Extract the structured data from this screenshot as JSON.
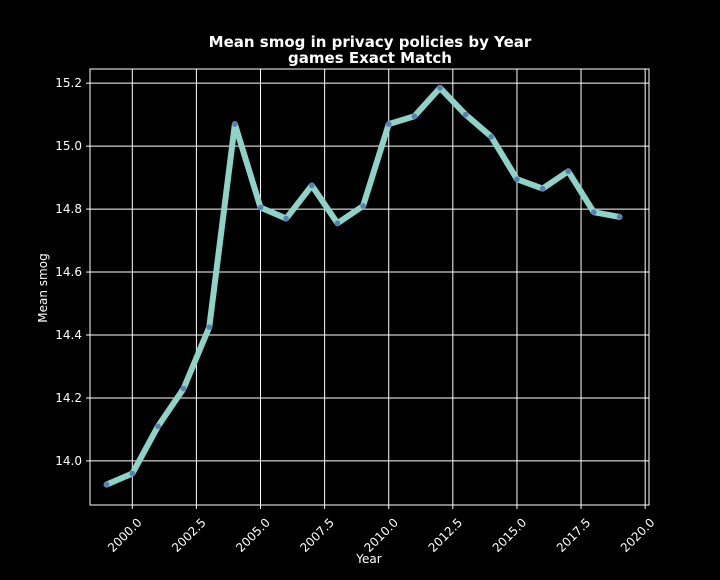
{
  "chart_data": {
    "type": "line",
    "title": "Mean smog in privacy policies by Year",
    "subtitle": "games Exact Match",
    "xlabel": "Year",
    "ylabel": "Mean smog",
    "xlim": [
      1998.35,
      2020.15
    ],
    "ylim": [
      13.86,
      15.245
    ],
    "xticks": [
      2000.0,
      2002.5,
      2005.0,
      2007.5,
      2010.0,
      2012.5,
      2015.0,
      2017.5,
      2020.0
    ],
    "xtick_labels": [
      "2000.0",
      "2002.5",
      "2005.0",
      "2007.5",
      "2010.0",
      "2012.5",
      "2015.0",
      "2017.5",
      "2020.0"
    ],
    "yticks": [
      14.0,
      14.2,
      14.4,
      14.6,
      14.8,
      15.0,
      15.2
    ],
    "ytick_labels": [
      "14.0",
      "14.2",
      "14.4",
      "14.6",
      "14.8",
      "15.0",
      "15.2"
    ],
    "grid": true,
    "x": [
      1999,
      2000,
      2001,
      2002,
      2003,
      2004,
      2005,
      2006,
      2007,
      2008,
      2009,
      2010,
      2011,
      2012,
      2013,
      2014,
      2015,
      2016,
      2017,
      2018,
      2019
    ],
    "series": [
      {
        "values": [
          13.925,
          13.96,
          14.11,
          14.23,
          14.425,
          15.07,
          14.805,
          14.77,
          14.875,
          14.755,
          14.81,
          15.07,
          15.095,
          15.185,
          15.1,
          15.03,
          14.895,
          14.865,
          14.92,
          14.79,
          14.775
        ]
      }
    ],
    "colors": {
      "background": "#000000",
      "grid": "#ffffff",
      "line": "#8dd3c7",
      "marker": "#4c72b0"
    }
  }
}
